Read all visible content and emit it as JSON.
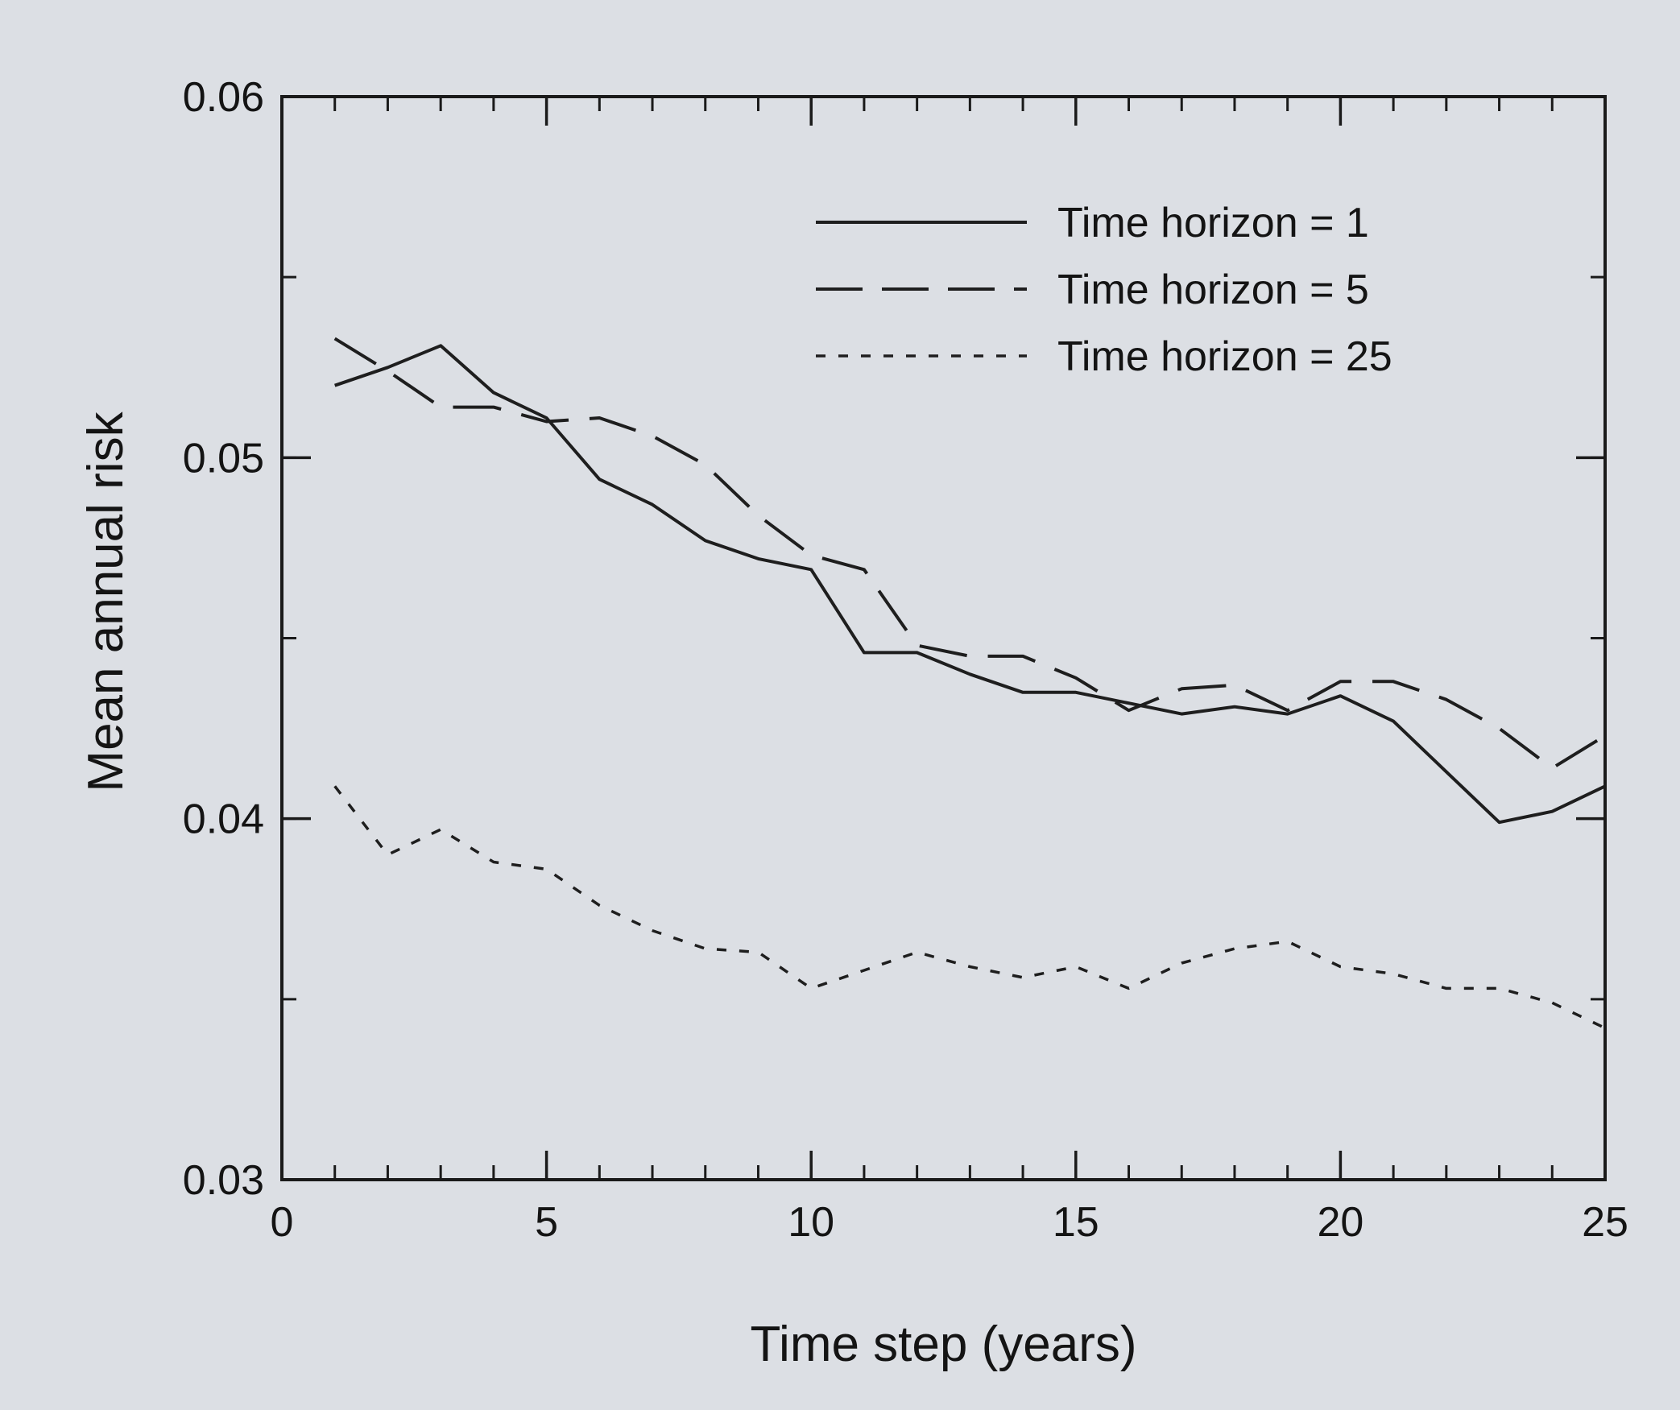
{
  "chart_data": {
    "type": "line",
    "xlabel": "Time step (years)",
    "ylabel": "Mean annual risk",
    "xlim": [
      0,
      25
    ],
    "ylim": [
      0.03,
      0.06
    ],
    "xticks": [
      0,
      5,
      10,
      15,
      20,
      25
    ],
    "xtick_labels": [
      "0",
      "5",
      "10",
      "15",
      "20",
      "25"
    ],
    "yticks": [
      0.03,
      0.04,
      0.05,
      0.06
    ],
    "ytick_labels": [
      "0.03",
      "0.04",
      "0.05",
      "0.06"
    ],
    "x_minor_step": 1,
    "y_minor_step": 0.005,
    "grid": false,
    "legend_position": "top-right",
    "series": [
      {
        "name": "Time horizon = 1",
        "style": "solid",
        "x": [
          1,
          2,
          3,
          4,
          5,
          6,
          7,
          8,
          9,
          10,
          11,
          12,
          13,
          14,
          15,
          16,
          17,
          18,
          19,
          20,
          21,
          22,
          23,
          24,
          25
        ],
        "y": [
          0.052,
          0.0525,
          0.0531,
          0.0518,
          0.0511,
          0.0494,
          0.0487,
          0.0477,
          0.0472,
          0.0469,
          0.0446,
          0.0446,
          0.044,
          0.0435,
          0.0435,
          0.0432,
          0.0429,
          0.0431,
          0.0429,
          0.0434,
          0.0427,
          0.0413,
          0.0399,
          0.0402,
          0.0409
        ]
      },
      {
        "name": "Time horizon = 5",
        "style": "dashed",
        "x": [
          1,
          2,
          3,
          4,
          5,
          6,
          7,
          8,
          9,
          10,
          11,
          12,
          13,
          14,
          15,
          16,
          17,
          18,
          19,
          20,
          21,
          22,
          23,
          24,
          25
        ],
        "y": [
          0.0533,
          0.0524,
          0.0514,
          0.0514,
          0.051,
          0.0511,
          0.0506,
          0.0498,
          0.0484,
          0.0473,
          0.0469,
          0.0448,
          0.0445,
          0.0445,
          0.0439,
          0.043,
          0.0436,
          0.0437,
          0.043,
          0.0438,
          0.0438,
          0.0433,
          0.0425,
          0.0414,
          0.0423
        ]
      },
      {
        "name": "Time horizon = 25",
        "style": "dotted",
        "x": [
          1,
          2,
          3,
          4,
          5,
          6,
          7,
          8,
          9,
          10,
          11,
          12,
          13,
          14,
          15,
          16,
          17,
          18,
          19,
          20,
          21,
          22,
          23,
          24,
          25
        ],
        "y": [
          0.0409,
          0.039,
          0.0397,
          0.0388,
          0.0386,
          0.0376,
          0.0369,
          0.0364,
          0.0363,
          0.0353,
          0.0358,
          0.0363,
          0.0359,
          0.0356,
          0.0359,
          0.0353,
          0.036,
          0.0364,
          0.0366,
          0.0359,
          0.0357,
          0.0353,
          0.0353,
          0.0349,
          0.0342
        ]
      }
    ]
  }
}
